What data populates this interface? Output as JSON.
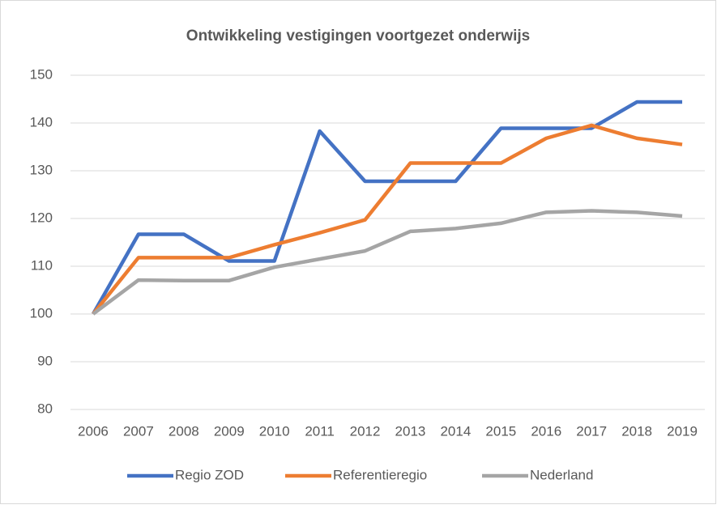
{
  "chart_data": {
    "type": "line",
    "title": "Ontwikkeling vestigingen voortgezet onderwijs",
    "categories": [
      "2006",
      "2007",
      "2008",
      "2009",
      "2010",
      "2011",
      "2012",
      "2013",
      "2014",
      "2015",
      "2016",
      "2017",
      "2018",
      "2019"
    ],
    "series": [
      {
        "name": "Regio ZOD",
        "color": "#4472c4",
        "values": [
          100,
          116.7,
          116.7,
          111.1,
          111.1,
          138.3,
          127.8,
          127.8,
          127.8,
          138.9,
          138.9,
          138.9,
          144.4,
          144.4
        ]
      },
      {
        "name": "Referentieregio",
        "color": "#ed7d31",
        "values": [
          100,
          111.8,
          111.8,
          111.8,
          114.5,
          117,
          119.7,
          131.6,
          131.6,
          131.6,
          136.8,
          139.5,
          136.8,
          135.5
        ]
      },
      {
        "name": "Nederland",
        "color": "#a5a5a5",
        "values": [
          100,
          107.1,
          107,
          107,
          109.8,
          111.5,
          113.2,
          117.3,
          117.9,
          119,
          121.3,
          121.6,
          121.3,
          120.5
        ]
      }
    ],
    "ylim": [
      80,
      150
    ],
    "yticks": [
      80,
      90,
      100,
      110,
      120,
      130,
      140,
      150
    ],
    "grid": true,
    "legend": "bottom"
  }
}
